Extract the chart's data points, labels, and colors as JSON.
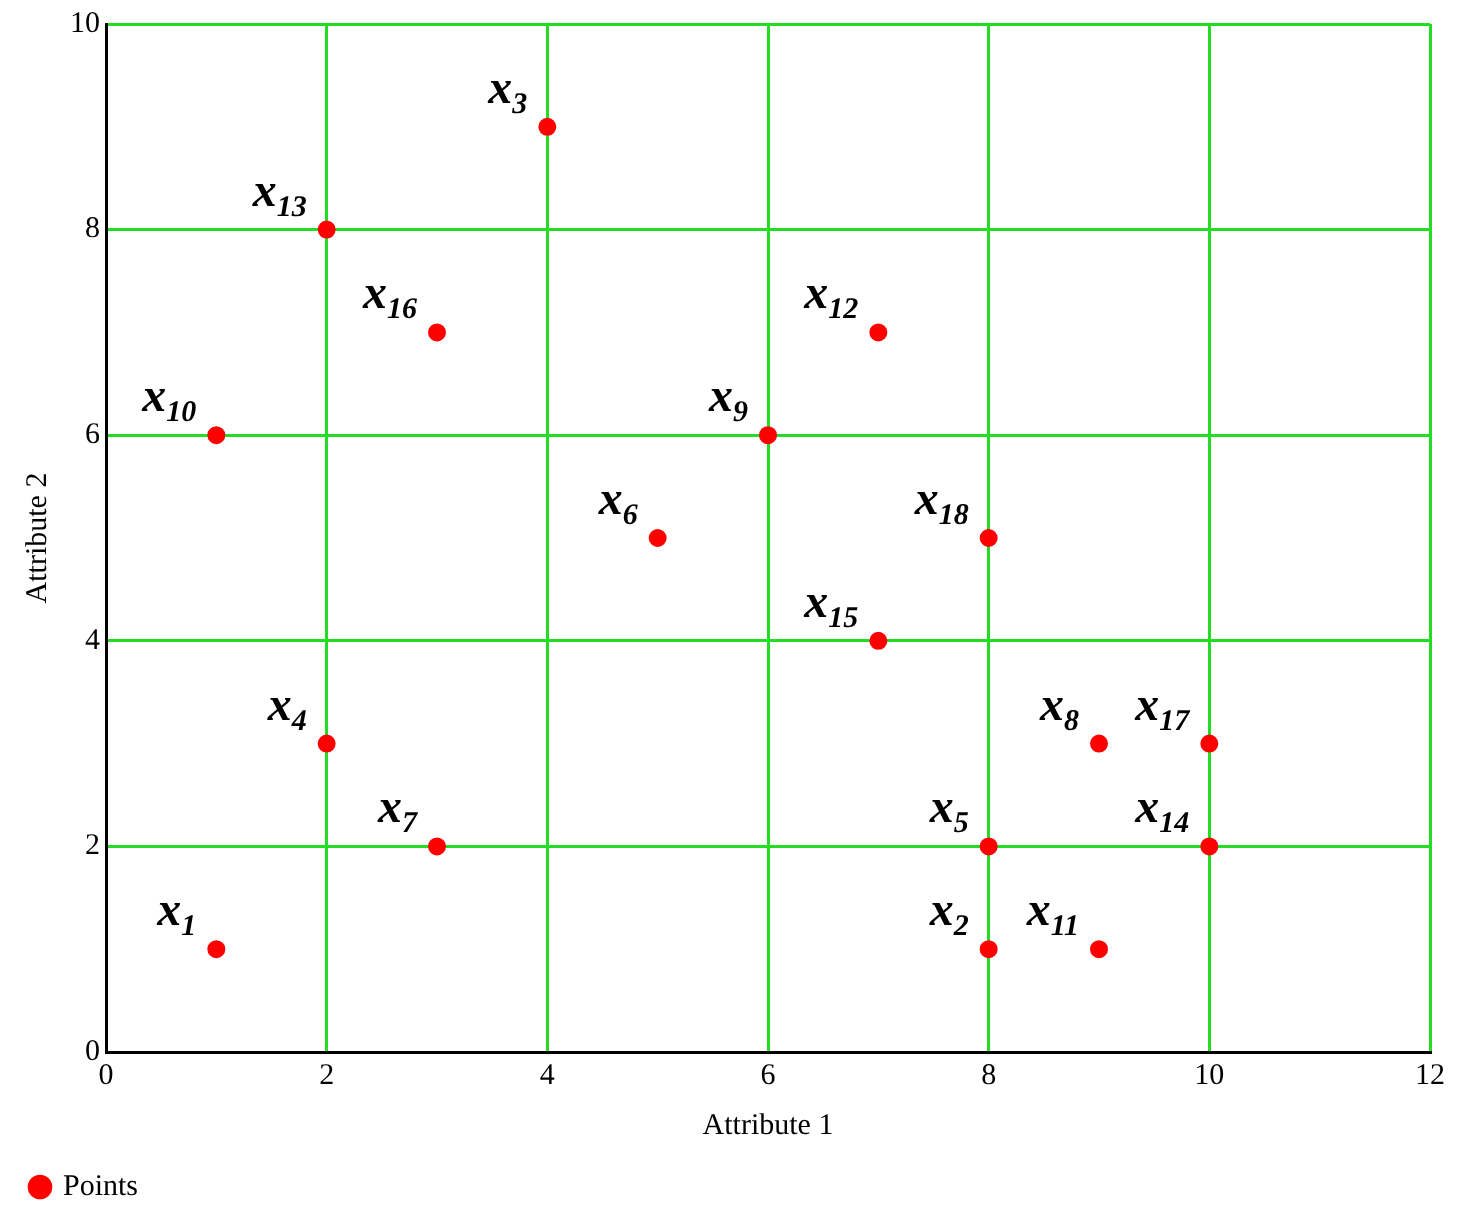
{
  "chart_data": {
    "type": "scatter",
    "xlabel": "Attribute 1",
    "ylabel": "Attribute 2",
    "xlim": [
      0,
      12
    ],
    "ylim": [
      0,
      10
    ],
    "xticks": [
      0,
      2,
      4,
      6,
      8,
      10,
      12
    ],
    "yticks": [
      0,
      2,
      4,
      6,
      8,
      10
    ],
    "grid": true,
    "legend": "bottom left",
    "marker": "circle",
    "series": [
      {
        "name": "Points",
        "color": "#ff0000",
        "x": [
          1,
          8,
          4,
          2,
          8,
          5,
          3,
          9,
          6,
          1,
          9,
          7,
          2,
          10,
          7,
          3,
          10,
          8
        ],
        "values": [
          1,
          1,
          9,
          3,
          2,
          5,
          2,
          3,
          6,
          6,
          1,
          7,
          8,
          2,
          4,
          7,
          3,
          5
        ]
      }
    ],
    "annotations": [
      {
        "text": "x$_{1}$",
        "x": 1,
        "y": 1
      },
      {
        "text": "x$_{2}$",
        "x": 8,
        "y": 1
      },
      {
        "text": "x$_{3}$",
        "x": 4,
        "y": 9
      },
      {
        "text": "x$_{4}$",
        "x": 2,
        "y": 3
      },
      {
        "text": "x$_{5}$",
        "x": 8,
        "y": 2
      },
      {
        "text": "x$_{6}$",
        "x": 5,
        "y": 5
      },
      {
        "text": "x$_{7}$",
        "x": 3,
        "y": 2
      },
      {
        "text": "x$_{8}$",
        "x": 9,
        "y": 3
      },
      {
        "text": "x$_{9}$",
        "x": 6,
        "y": 6
      },
      {
        "text": "x$_{10}$",
        "x": 1,
        "y": 6
      },
      {
        "text": "x$_{11}$",
        "x": 9,
        "y": 1
      },
      {
        "text": "x$_{12}$",
        "x": 7,
        "y": 7
      },
      {
        "text": "x$_{13}$",
        "x": 2,
        "y": 8
      },
      {
        "text": "x$_{14}$",
        "x": 10,
        "y": 2
      },
      {
        "text": "x$_{15}$",
        "x": 7,
        "y": 4
      },
      {
        "text": "x$_{16}$",
        "x": 3,
        "y": 7
      },
      {
        "text": "x$_{17}$",
        "x": 10,
        "y": 3
      },
      {
        "text": "x$_{18}$",
        "x": 8,
        "y": 5
      }
    ]
  }
}
